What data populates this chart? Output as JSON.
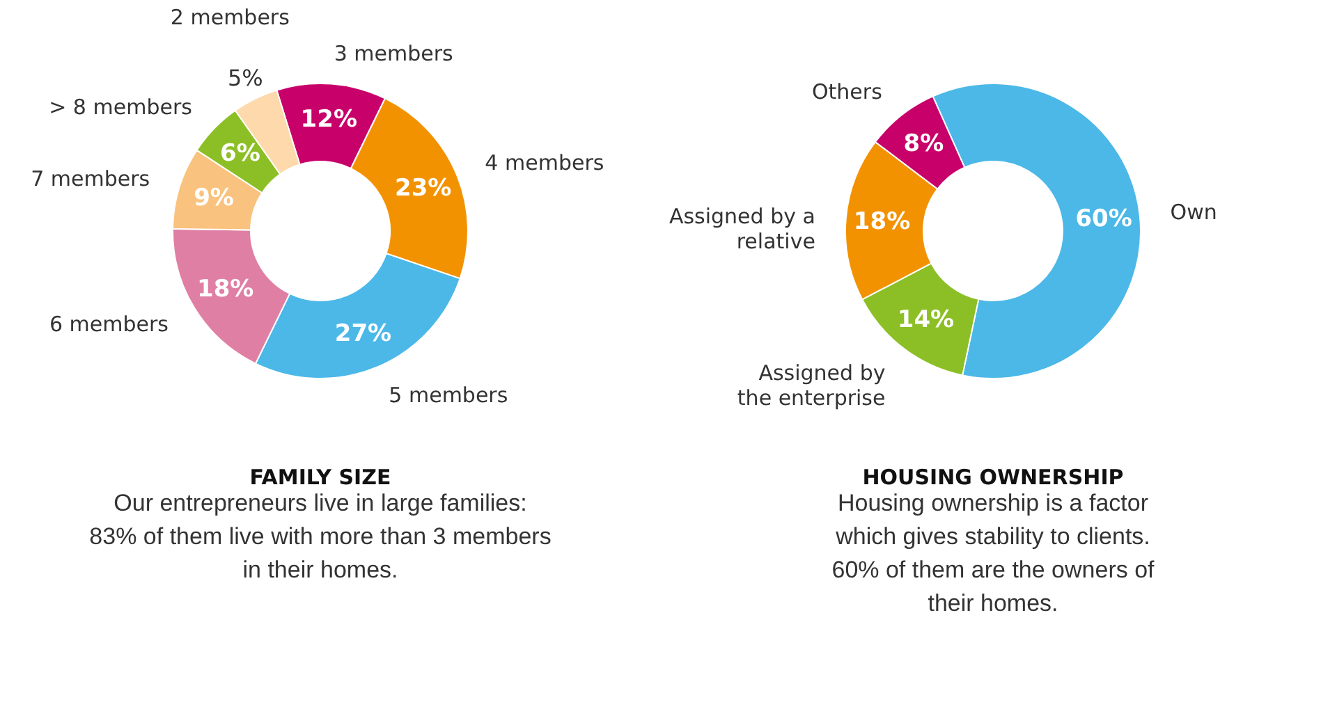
{
  "chart_data": [
    {
      "type": "donut",
      "title": "FAMILY SIZE",
      "subtitle": "Our entrepreneurs live in large families: 83% of them live with more than 3 members in their homes.",
      "categories": [
        "3 members",
        "4 members",
        "5 members",
        "6 members",
        "7 members",
        "> 8 members",
        "2 members"
      ],
      "values": [
        12,
        23,
        27,
        18,
        9,
        6,
        5
      ],
      "value_labels": [
        "12%",
        "23%",
        "27%",
        "18%",
        "9%",
        "6%",
        "5%"
      ],
      "colors": [
        "#c8006a",
        "#f39200",
        "#4bb8e8",
        "#e07fa4",
        "#f9c27e",
        "#8cbf26",
        "#fdd9ab"
      ]
    },
    {
      "type": "donut",
      "title": "HOUSING OWNERSHIP",
      "subtitle": "Housing ownership is a factor which gives stability to clients. 60% of them are the owners of their homes.",
      "categories": [
        "Own",
        "Assigned by the enterprise",
        "Assigned by a relative",
        "Others"
      ],
      "values": [
        60,
        14,
        18,
        8
      ],
      "value_labels": [
        "60%",
        "14%",
        "18%",
        "8%"
      ],
      "colors": [
        "#4bb8e8",
        "#8cbf26",
        "#f39200",
        "#c8006a"
      ]
    }
  ]
}
